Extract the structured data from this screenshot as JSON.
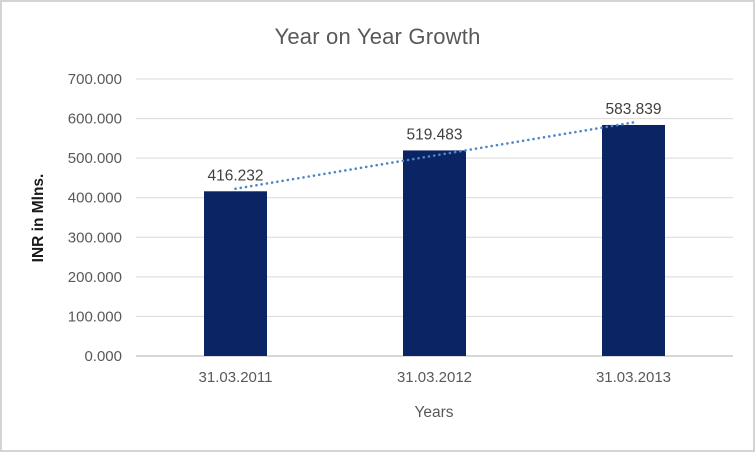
{
  "chart": {
    "title": "Year on Year Growth",
    "x_axis_title": "Years",
    "y_axis_title": "INR in Mlns."
  },
  "chart_data": {
    "type": "bar",
    "title": "Year on Year Growth",
    "xlabel": "Years",
    "ylabel": "INR in Mlns.",
    "categories": [
      "31.03.2011",
      "31.03.2012",
      "31.03.2013"
    ],
    "values": [
      416.232,
      519.483,
      583.839
    ],
    "value_labels": [
      "416.232",
      "519.483",
      "583.839"
    ],
    "ylim": [
      0,
      700
    ],
    "ytick_step": 100,
    "ytick_labels": [
      "0.000",
      "100.000",
      "200.000",
      "300.000",
      "400.000",
      "500.000",
      "600.000",
      "700.000"
    ],
    "grid": true,
    "legend_position": "none",
    "trendline": {
      "type": "linear",
      "style": "dotted"
    },
    "colors": {
      "bar": "#0A2464",
      "trendline": "#4E87C8",
      "gridline": "#D9D9D9",
      "axis_line": "#BFBFBF",
      "tick_label": "#595959",
      "data_label": "#404040",
      "title": "#595959",
      "axis_title": "#595959",
      "border": "#D4D4D4"
    }
  }
}
